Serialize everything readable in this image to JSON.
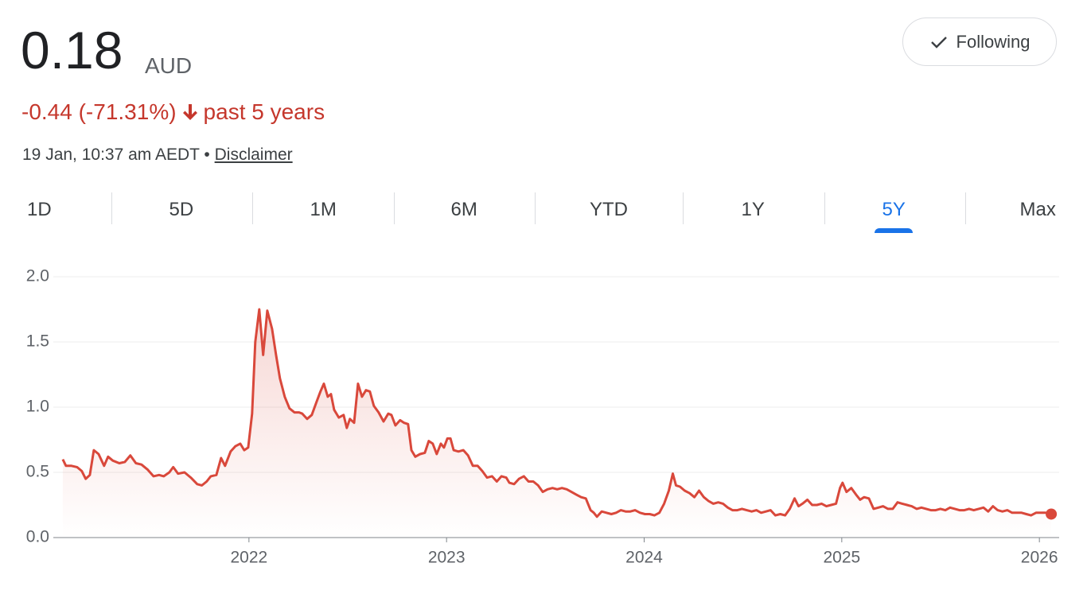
{
  "header": {
    "price": "0.18",
    "currency": "AUD",
    "change": "-0.44 (-71.31%)",
    "period": "past 5 years",
    "timestamp": "19 Jan, 10:37 am AEDT •",
    "disclaimer": "Disclaimer",
    "button": "Following"
  },
  "tabs": [
    "1D",
    "5D",
    "1M",
    "6M",
    "YTD",
    "1Y",
    "5Y",
    "Max"
  ],
  "active_tab": "5Y",
  "chart_data": {
    "type": "line",
    "color": "#d9483b",
    "x": [
      2021.058,
      2021.074,
      2021.102,
      2021.13,
      2021.154,
      2021.174,
      2021.195,
      2021.215,
      2021.239,
      2021.267,
      2021.287,
      2021.311,
      2021.344,
      2021.372,
      2021.4,
      2021.428,
      2021.456,
      2021.488,
      2021.517,
      2021.545,
      2021.569,
      2021.597,
      2021.617,
      2021.641,
      2021.674,
      2021.706,
      2021.738,
      2021.762,
      2021.786,
      2021.807,
      2021.835,
      2021.859,
      2021.879,
      2021.907,
      2021.931,
      2021.956,
      2021.976,
      2021.996,
      2022.016,
      2022.032,
      2022.052,
      2022.072,
      2022.093,
      2022.117,
      2022.137,
      2022.157,
      2022.181,
      2022.205,
      2022.23,
      2022.254,
      2022.27,
      2022.294,
      2022.318,
      2022.342,
      2022.362,
      2022.379,
      2022.399,
      2022.415,
      2022.431,
      2022.455,
      2022.479,
      2022.495,
      2022.511,
      2022.532,
      2022.552,
      2022.572,
      2022.592,
      2022.612,
      2022.632,
      2022.656,
      2022.681,
      2022.705,
      2022.721,
      2022.741,
      2022.765,
      2022.785,
      2022.805,
      2022.822,
      2022.842,
      2022.866,
      2022.89,
      2022.91,
      2022.93,
      2022.95,
      2022.971,
      2022.987,
      2023.004,
      2023.02,
      2023.036,
      2023.06,
      2023.085,
      2023.109,
      2023.133,
      2023.157,
      2023.181,
      2023.205,
      2023.23,
      2023.254,
      2023.278,
      2023.302,
      2023.318,
      2023.342,
      2023.366,
      2023.391,
      2023.415,
      2023.439,
      2023.463,
      2023.487,
      2023.511,
      2023.536,
      2023.56,
      2023.584,
      2023.608,
      2023.632,
      2023.656,
      2023.681,
      2023.705,
      2023.729,
      2023.745,
      2023.761,
      2023.785,
      2023.809,
      2023.834,
      2023.858,
      2023.882,
      2023.906,
      2023.93,
      2023.954,
      2023.979,
      2024.004,
      2024.028,
      2024.052,
      2024.077,
      2024.101,
      2024.125,
      2024.145,
      2024.161,
      2024.181,
      2024.205,
      2024.23,
      2024.254,
      2024.278,
      2024.302,
      2024.326,
      2024.35,
      2024.375,
      2024.399,
      2024.423,
      2024.447,
      2024.471,
      2024.495,
      2024.519,
      2024.544,
      2024.568,
      2024.592,
      2024.616,
      2024.64,
      2024.664,
      2024.689,
      2024.713,
      2024.737,
      2024.761,
      2024.781,
      2024.801,
      2024.826,
      2024.85,
      2024.874,
      2024.898,
      2024.922,
      2024.946,
      2024.971,
      2024.991,
      2025.004,
      2025.024,
      2025.048,
      2025.072,
      2025.093,
      2025.113,
      2025.137,
      2025.161,
      2025.185,
      2025.209,
      2025.234,
      2025.258,
      2025.282,
      2025.306,
      2025.33,
      2025.354,
      2025.379,
      2025.403,
      2025.427,
      2025.451,
      2025.475,
      2025.499,
      2025.524,
      2025.548,
      2025.572,
      2025.596,
      2025.62,
      2025.644,
      2025.668,
      2025.693,
      2025.717,
      2025.741,
      2025.765,
      2025.789,
      2025.813,
      2025.838,
      2025.862,
      2025.886,
      2025.91,
      2025.934,
      2025.958,
      2025.983,
      2026.008,
      2026.032,
      2026.06
    ],
    "values": [
      0.6,
      0.55,
      0.55,
      0.54,
      0.51,
      0.45,
      0.48,
      0.67,
      0.64,
      0.55,
      0.62,
      0.59,
      0.57,
      0.58,
      0.63,
      0.57,
      0.56,
      0.52,
      0.47,
      0.48,
      0.47,
      0.5,
      0.54,
      0.49,
      0.5,
      0.46,
      0.41,
      0.4,
      0.43,
      0.47,
      0.48,
      0.61,
      0.55,
      0.66,
      0.7,
      0.72,
      0.67,
      0.69,
      0.95,
      1.5,
      1.75,
      1.4,
      1.74,
      1.6,
      1.4,
      1.22,
      1.08,
      0.99,
      0.96,
      0.96,
      0.95,
      0.91,
      0.94,
      1.04,
      1.12,
      1.18,
      1.08,
      1.1,
      0.98,
      0.92,
      0.94,
      0.84,
      0.91,
      0.88,
      1.18,
      1.08,
      1.13,
      1.12,
      1.01,
      0.96,
      0.89,
      0.95,
      0.94,
      0.86,
      0.9,
      0.88,
      0.87,
      0.67,
      0.62,
      0.64,
      0.65,
      0.74,
      0.72,
      0.64,
      0.72,
      0.69,
      0.76,
      0.76,
      0.67,
      0.66,
      0.67,
      0.63,
      0.55,
      0.55,
      0.51,
      0.46,
      0.47,
      0.43,
      0.47,
      0.46,
      0.42,
      0.41,
      0.45,
      0.47,
      0.43,
      0.43,
      0.4,
      0.35,
      0.37,
      0.38,
      0.37,
      0.38,
      0.37,
      0.35,
      0.33,
      0.31,
      0.3,
      0.21,
      0.19,
      0.16,
      0.2,
      0.19,
      0.18,
      0.19,
      0.21,
      0.2,
      0.2,
      0.21,
      0.19,
      0.18,
      0.18,
      0.17,
      0.19,
      0.26,
      0.36,
      0.49,
      0.4,
      0.39,
      0.36,
      0.34,
      0.31,
      0.36,
      0.31,
      0.28,
      0.26,
      0.27,
      0.26,
      0.23,
      0.21,
      0.21,
      0.22,
      0.21,
      0.2,
      0.21,
      0.19,
      0.2,
      0.21,
      0.17,
      0.18,
      0.17,
      0.22,
      0.3,
      0.24,
      0.26,
      0.29,
      0.25,
      0.25,
      0.26,
      0.24,
      0.25,
      0.26,
      0.38,
      0.42,
      0.35,
      0.38,
      0.33,
      0.29,
      0.31,
      0.3,
      0.22,
      0.23,
      0.24,
      0.22,
      0.22,
      0.27,
      0.26,
      0.25,
      0.24,
      0.22,
      0.23,
      0.22,
      0.21,
      0.21,
      0.22,
      0.21,
      0.23,
      0.22,
      0.21,
      0.21,
      0.22,
      0.21,
      0.22,
      0.23,
      0.2,
      0.24,
      0.21,
      0.2,
      0.21,
      0.19,
      0.19,
      0.19,
      0.18,
      0.17,
      0.19,
      0.19,
      0.19,
      0.18
    ],
    "xlim": [
      2021.01,
      2026.1
    ],
    "xticks": [
      2022,
      2023,
      2024,
      2025,
      2026
    ],
    "ylim": [
      0,
      2
    ],
    "yticks": [
      {
        "value": 0,
        "label": "0.0"
      },
      {
        "value": 0.5,
        "label": "0.5"
      },
      {
        "value": 1,
        "label": "1.0"
      },
      {
        "value": 1.5,
        "label": "1.5"
      },
      {
        "value": 2,
        "label": "2.0"
      }
    ],
    "grid": true
  }
}
